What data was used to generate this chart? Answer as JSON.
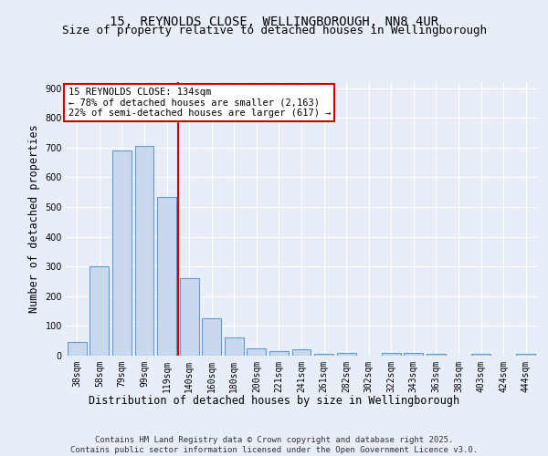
{
  "title_line1": "15, REYNOLDS CLOSE, WELLINGBOROUGH, NN8 4UR",
  "title_line2": "Size of property relative to detached houses in Wellingborough",
  "xlabel": "Distribution of detached houses by size in Wellingborough",
  "ylabel": "Number of detached properties",
  "categories": [
    "38sqm",
    "58sqm",
    "79sqm",
    "99sqm",
    "119sqm",
    "140sqm",
    "160sqm",
    "180sqm",
    "200sqm",
    "221sqm",
    "241sqm",
    "261sqm",
    "282sqm",
    "302sqm",
    "322sqm",
    "343sqm",
    "363sqm",
    "383sqm",
    "403sqm",
    "424sqm",
    "444sqm"
  ],
  "values": [
    45,
    300,
    690,
    705,
    535,
    260,
    125,
    60,
    25,
    15,
    20,
    5,
    10,
    0,
    10,
    8,
    5,
    0,
    5,
    0,
    5
  ],
  "bar_color": "#c8d8ed",
  "bar_edge_color": "#6699cc",
  "red_line_index": 4.5,
  "annotation_line1": "15 REYNOLDS CLOSE: 134sqm",
  "annotation_line2": "← 78% of detached houses are smaller (2,163)",
  "annotation_line3": "22% of semi-detached houses are larger (617) →",
  "annotation_box_color": "#ffffff",
  "annotation_border_color": "#cc0000",
  "ylim": [
    0,
    920
  ],
  "yticks": [
    0,
    100,
    200,
    300,
    400,
    500,
    600,
    700,
    800,
    900
  ],
  "background_color": "#e8eef8",
  "grid_color": "#ffffff",
  "footer_line1": "Contains HM Land Registry data © Crown copyright and database right 2025.",
  "footer_line2": "Contains public sector information licensed under the Open Government Licence v3.0.",
  "title_fontsize": 10,
  "subtitle_fontsize": 9,
  "axis_label_fontsize": 8.5,
  "tick_fontsize": 7,
  "annotation_fontsize": 7.5,
  "footer_fontsize": 6.5
}
